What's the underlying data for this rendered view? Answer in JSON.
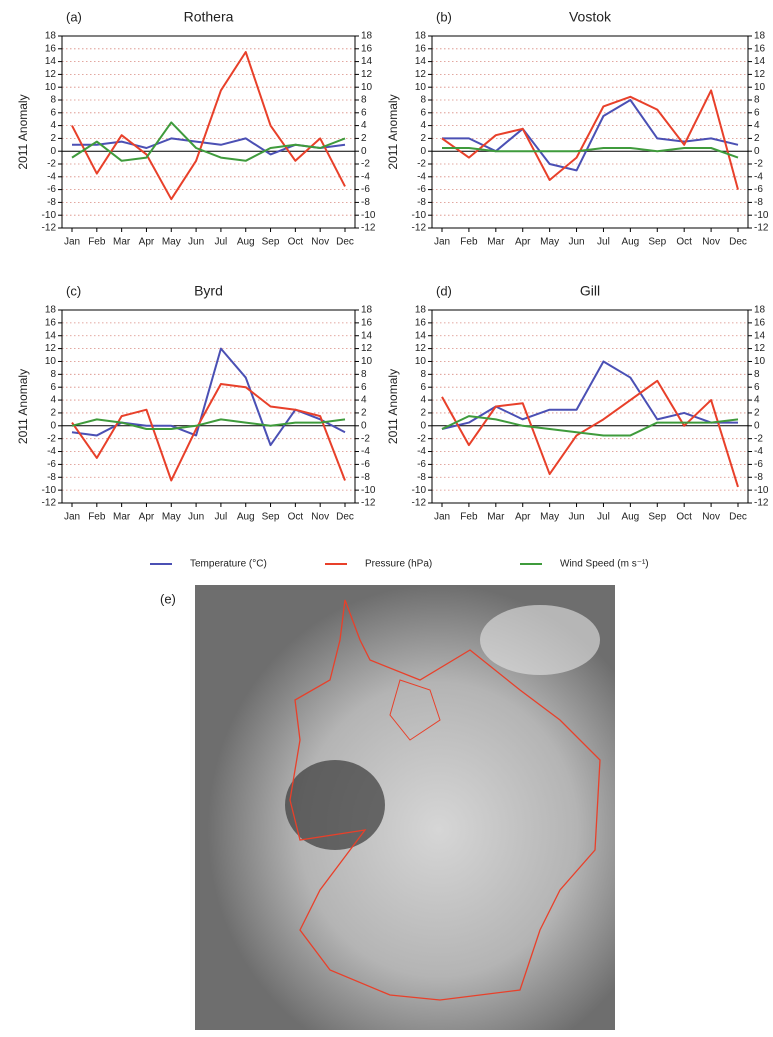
{
  "chart_data": [
    {
      "type": "line",
      "panel": "(a)",
      "title": "Rothera",
      "ylabel": "2011 Anomaly",
      "categories": [
        "Jan",
        "Feb",
        "Mar",
        "Apr",
        "May",
        "Jun",
        "Jul",
        "Aug",
        "Sep",
        "Oct",
        "Nov",
        "Dec"
      ],
      "ylim": [
        -12,
        18
      ],
      "yticks": [
        -12,
        -10,
        -8,
        -6,
        -4,
        -2,
        0,
        2,
        4,
        6,
        8,
        10,
        12,
        14,
        16,
        18
      ],
      "grid": true,
      "series": [
        {
          "name": "Temperature (°C)",
          "color": "#4b50b4",
          "values": [
            1,
            1,
            1.5,
            0.5,
            2,
            1.5,
            1,
            2,
            -0.5,
            1,
            0.5,
            1
          ]
        },
        {
          "name": "Pressure (hPa)",
          "color": "#e8402a",
          "values": [
            4,
            -3.5,
            2.5,
            -0.5,
            -7.5,
            -1.5,
            9.5,
            15.5,
            4,
            -1.5,
            2,
            -5.5
          ]
        },
        {
          "name": "Wind Speed (m s⁻¹)",
          "color": "#3f9b3c",
          "values": [
            -1,
            1.5,
            -1.5,
            -1,
            4.5,
            0.5,
            -1,
            -1.5,
            0.5,
            1,
            0.5,
            2
          ]
        }
      ]
    },
    {
      "type": "line",
      "panel": "(b)",
      "title": "Vostok",
      "ylabel": "2011 Anomaly",
      "categories": [
        "Jan",
        "Feb",
        "Mar",
        "Apr",
        "May",
        "Jun",
        "Jul",
        "Aug",
        "Sep",
        "Oct",
        "Nov",
        "Dec"
      ],
      "ylim": [
        -12,
        18
      ],
      "yticks": [
        -12,
        -10,
        -8,
        -6,
        -4,
        -2,
        0,
        2,
        4,
        6,
        8,
        10,
        12,
        14,
        16,
        18
      ],
      "grid": true,
      "series": [
        {
          "name": "Temperature (°C)",
          "color": "#4b50b4",
          "values": [
            2,
            2,
            0,
            3.5,
            -2,
            -3,
            5.5,
            8,
            2,
            1.5,
            2,
            1
          ]
        },
        {
          "name": "Pressure (hPa)",
          "color": "#e8402a",
          "values": [
            2,
            -1,
            2.5,
            3.5,
            -4.5,
            -1,
            7,
            8.5,
            6.5,
            1,
            9.5,
            -6
          ]
        },
        {
          "name": "Wind Speed (m s⁻¹)",
          "color": "#3f9b3c",
          "values": [
            0.5,
            0.5,
            0,
            0,
            0,
            0,
            0.5,
            0.5,
            0,
            0.5,
            0.5,
            -1
          ]
        }
      ]
    },
    {
      "type": "line",
      "panel": "(c)",
      "title": "Byrd",
      "ylabel": "2011 Anomaly",
      "categories": [
        "Jan",
        "Feb",
        "Mar",
        "Apr",
        "May",
        "Jun",
        "Jul",
        "Aug",
        "Sep",
        "Oct",
        "Nov",
        "Dec"
      ],
      "ylim": [
        -12,
        18
      ],
      "yticks": [
        -12,
        -10,
        -8,
        -6,
        -4,
        -2,
        0,
        2,
        4,
        6,
        8,
        10,
        12,
        14,
        16,
        18
      ],
      "grid": true,
      "series": [
        {
          "name": "Temperature (°C)",
          "color": "#4b50b4",
          "values": [
            -1,
            -1.5,
            0.5,
            0,
            0,
            -1.5,
            12,
            7.5,
            -3,
            2.5,
            1,
            -1
          ]
        },
        {
          "name": "Pressure (hPa)",
          "color": "#e8402a",
          "values": [
            0.5,
            -5,
            1.5,
            2.5,
            -8.5,
            -0.5,
            6.5,
            6,
            3,
            2.5,
            1.5,
            -8.5
          ]
        },
        {
          "name": "Wind Speed (m s⁻¹)",
          "color": "#3f9b3c",
          "values": [
            0,
            1,
            0.5,
            -0.5,
            -0.5,
            0,
            1,
            0.5,
            0,
            0.5,
            0.5,
            1
          ]
        }
      ]
    },
    {
      "type": "line",
      "panel": "(d)",
      "title": "Gill",
      "ylabel": "2011 Anomaly",
      "categories": [
        "Jan",
        "Feb",
        "Mar",
        "Apr",
        "May",
        "Jun",
        "Jul",
        "Aug",
        "Sep",
        "Oct",
        "Nov",
        "Dec"
      ],
      "ylim": [
        -12,
        18
      ],
      "yticks": [
        -12,
        -10,
        -8,
        -6,
        -4,
        -2,
        0,
        2,
        4,
        6,
        8,
        10,
        12,
        14,
        16,
        18
      ],
      "grid": true,
      "series": [
        {
          "name": "Temperature (°C)",
          "color": "#4b50b4",
          "values": [
            -0.5,
            0.5,
            3,
            1,
            2.5,
            2.5,
            10,
            7.5,
            1,
            2,
            0.5,
            0.5
          ]
        },
        {
          "name": "Pressure (hPa)",
          "color": "#e8402a",
          "values": [
            4.5,
            -3,
            3,
            3.5,
            -7.5,
            -1.5,
            1,
            4,
            7,
            0,
            4,
            -9.5
          ]
        },
        {
          "name": "Wind Speed (m s⁻¹)",
          "color": "#3f9b3c",
          "values": [
            -0.5,
            1.5,
            1,
            0,
            -0.5,
            -1,
            -1.5,
            -1.5,
            0.5,
            0.5,
            0.5,
            1
          ]
        }
      ]
    }
  ],
  "image": {
    "label": "(e)"
  }
}
